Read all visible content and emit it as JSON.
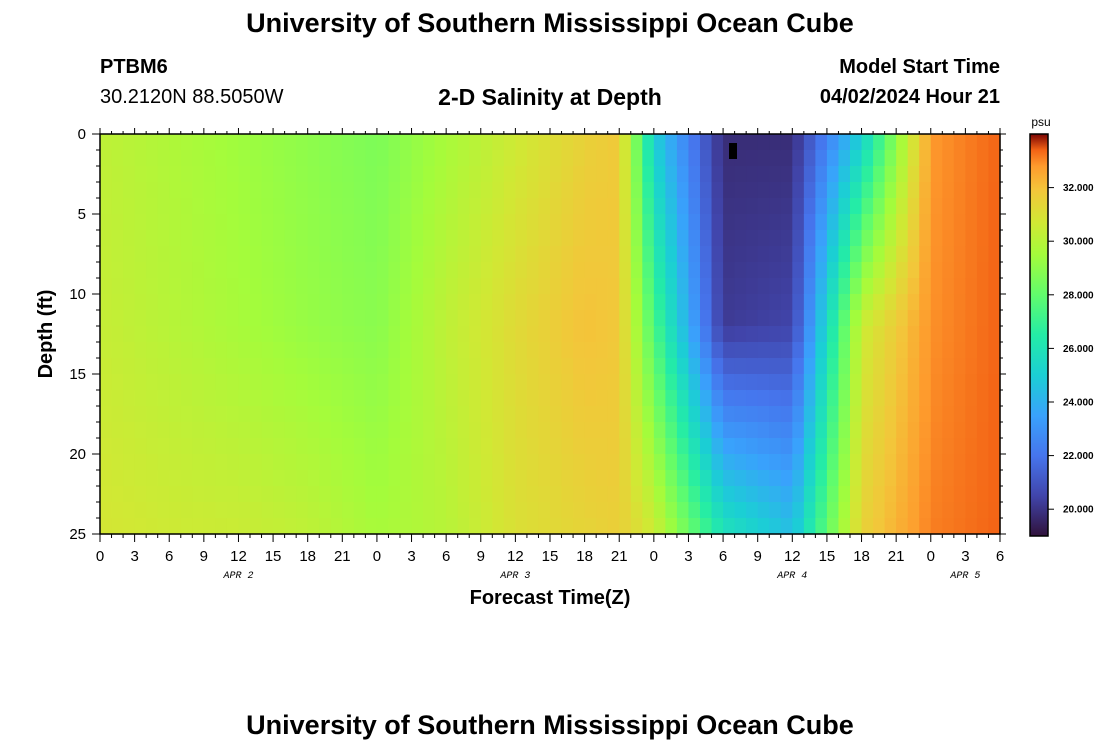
{
  "page": {
    "title": "University of Southern Mississippi Ocean Cube",
    "footer_title": "University of Southern Mississippi Ocean Cube"
  },
  "station": {
    "id": "PTBM6",
    "coords": "30.2120N  88.5050W"
  },
  "model": {
    "start_label": "Model Start Time",
    "start_value": "04/02/2024 Hour 21"
  },
  "chart_data": {
    "type": "heatmap",
    "title": "2-D Salinity at Depth",
    "xlabel": "Forecast Time(Z)",
    "ylabel": "Depth (ft)",
    "x_tick_labels": [
      "0",
      "3",
      "6",
      "9",
      "12",
      "15",
      "18",
      "21",
      "0",
      "3",
      "6",
      "9",
      "12",
      "15",
      "18",
      "21",
      "0",
      "3",
      "6",
      "9",
      "12",
      "15",
      "18",
      "21",
      "0",
      "3",
      "6"
    ],
    "date_labels": [
      {
        "label": "APR 2",
        "tick_index": 4
      },
      {
        "label": "APR 3",
        "tick_index": 12
      },
      {
        "label": "APR 4",
        "tick_index": 20
      },
      {
        "label": "APR 5",
        "tick_index": 25
      }
    ],
    "x_range_hours": [
      0,
      78
    ],
    "y_ticks": [
      0,
      5,
      10,
      15,
      20,
      25
    ],
    "ylim": [
      0,
      25
    ],
    "colorbar": {
      "unit": "psu",
      "range": [
        19.0,
        34.0
      ],
      "ticks": [
        "20.000",
        "22.000",
        "24.000",
        "26.000",
        "28.000",
        "30.000",
        "32.000"
      ],
      "tick_values": [
        20,
        22,
        24,
        26,
        28,
        30,
        32
      ]
    },
    "salinity_field_psu": {
      "description_hours": [
        0,
        6,
        12,
        18,
        24,
        30,
        36,
        42,
        45,
        48,
        54,
        60,
        66,
        72,
        78
      ],
      "surface": [
        30.2,
        29.8,
        29.4,
        29.0,
        28.6,
        29.6,
        30.6,
        31.5,
        31.8,
        25.0,
        19.8,
        19.8,
        25.0,
        32.8,
        33.4
      ],
      "mid_12ft": [
        30.4,
        30.0,
        29.6,
        29.2,
        28.9,
        30.2,
        31.2,
        32.0,
        31.8,
        27.5,
        20.2,
        20.5,
        30.5,
        32.9,
        33.4
      ],
      "bottom_25ft": [
        30.8,
        30.6,
        30.5,
        30.2,
        29.6,
        30.0,
        31.0,
        31.4,
        31.6,
        30.6,
        26.0,
        24.5,
        31.5,
        33.1,
        33.4
      ]
    }
  }
}
